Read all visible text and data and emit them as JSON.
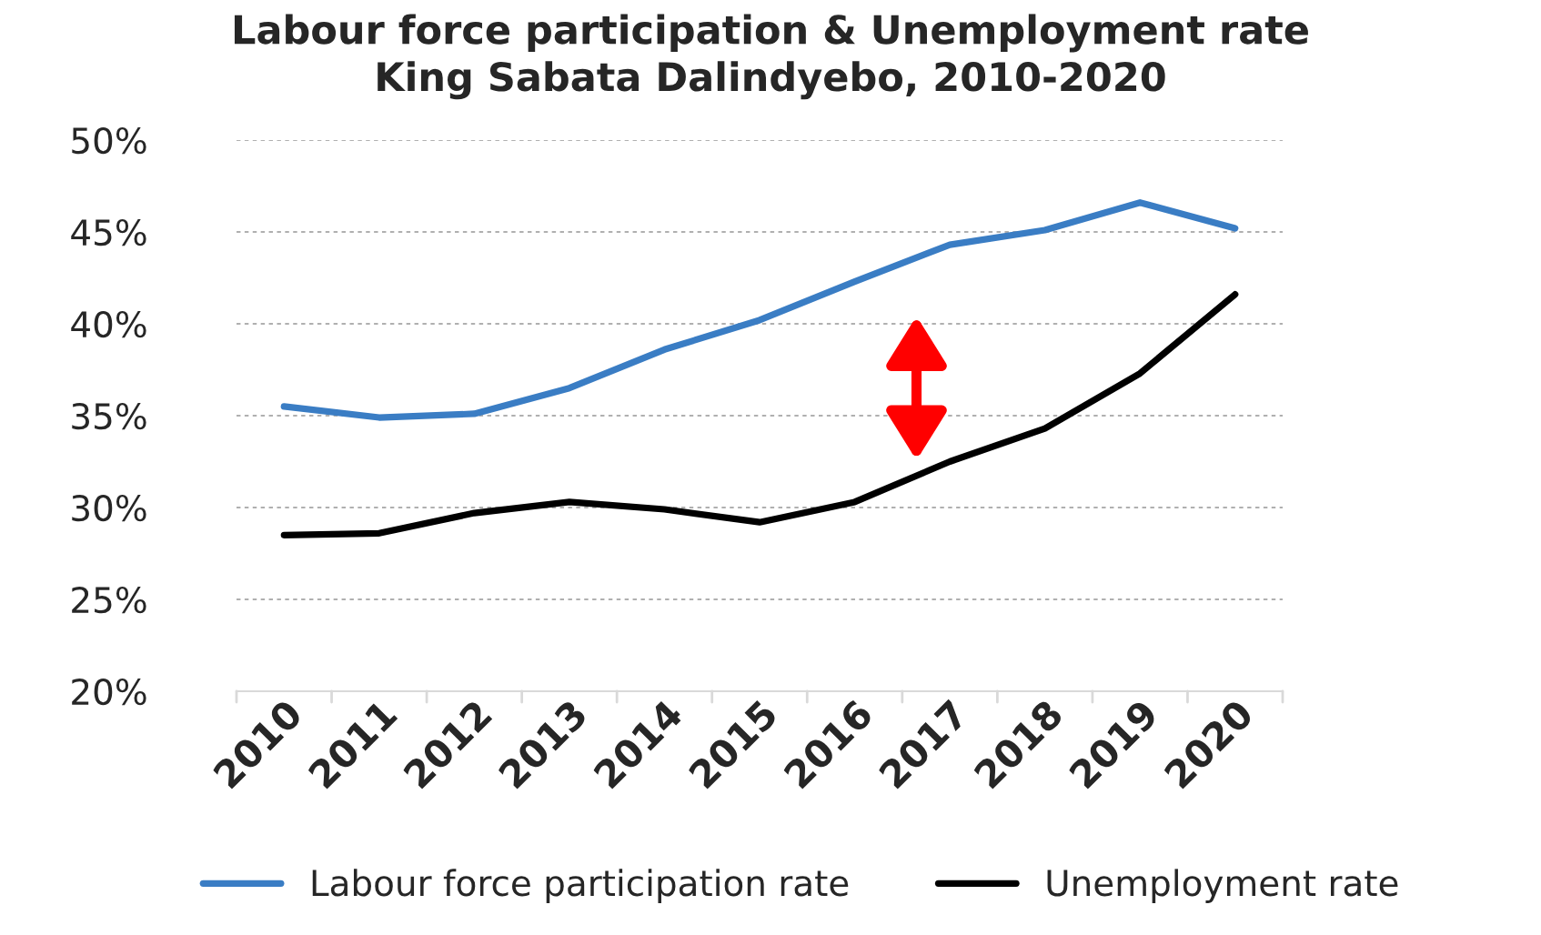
{
  "chart_data": {
    "type": "line",
    "title": "Labour force participation & Unemployment rate\nKing Sabata Dalindyebo, 2010-2020",
    "categories": [
      "2010",
      "2011",
      "2012",
      "2013",
      "2014",
      "2015",
      "2016",
      "2017",
      "2018",
      "2019",
      "2020"
    ],
    "series": [
      {
        "name": "Labour force participation rate",
        "color": "#3a7dc4",
        "values": [
          35.5,
          34.9,
          35.1,
          36.5,
          38.6,
          40.2,
          42.3,
          44.3,
          45.1,
          46.6,
          45.2
        ]
      },
      {
        "name": "Unemployment rate",
        "color": "#000000",
        "values": [
          28.5,
          28.6,
          29.7,
          30.3,
          29.9,
          29.2,
          30.3,
          32.5,
          34.3,
          37.3,
          41.6
        ]
      }
    ],
    "ylim": [
      20,
      50
    ],
    "yticks": [
      {
        "value": 20,
        "label": "20%"
      },
      {
        "value": 25,
        "label": "25%"
      },
      {
        "value": 30,
        "label": "30%"
      },
      {
        "value": 35,
        "label": "35%"
      },
      {
        "value": 40,
        "label": "40%"
      },
      {
        "value": 45,
        "label": "45%"
      },
      {
        "value": 50,
        "label": "50%"
      }
    ],
    "grid": "y",
    "legend": "bottom",
    "marker": "none",
    "line_style": "solid"
  }
}
